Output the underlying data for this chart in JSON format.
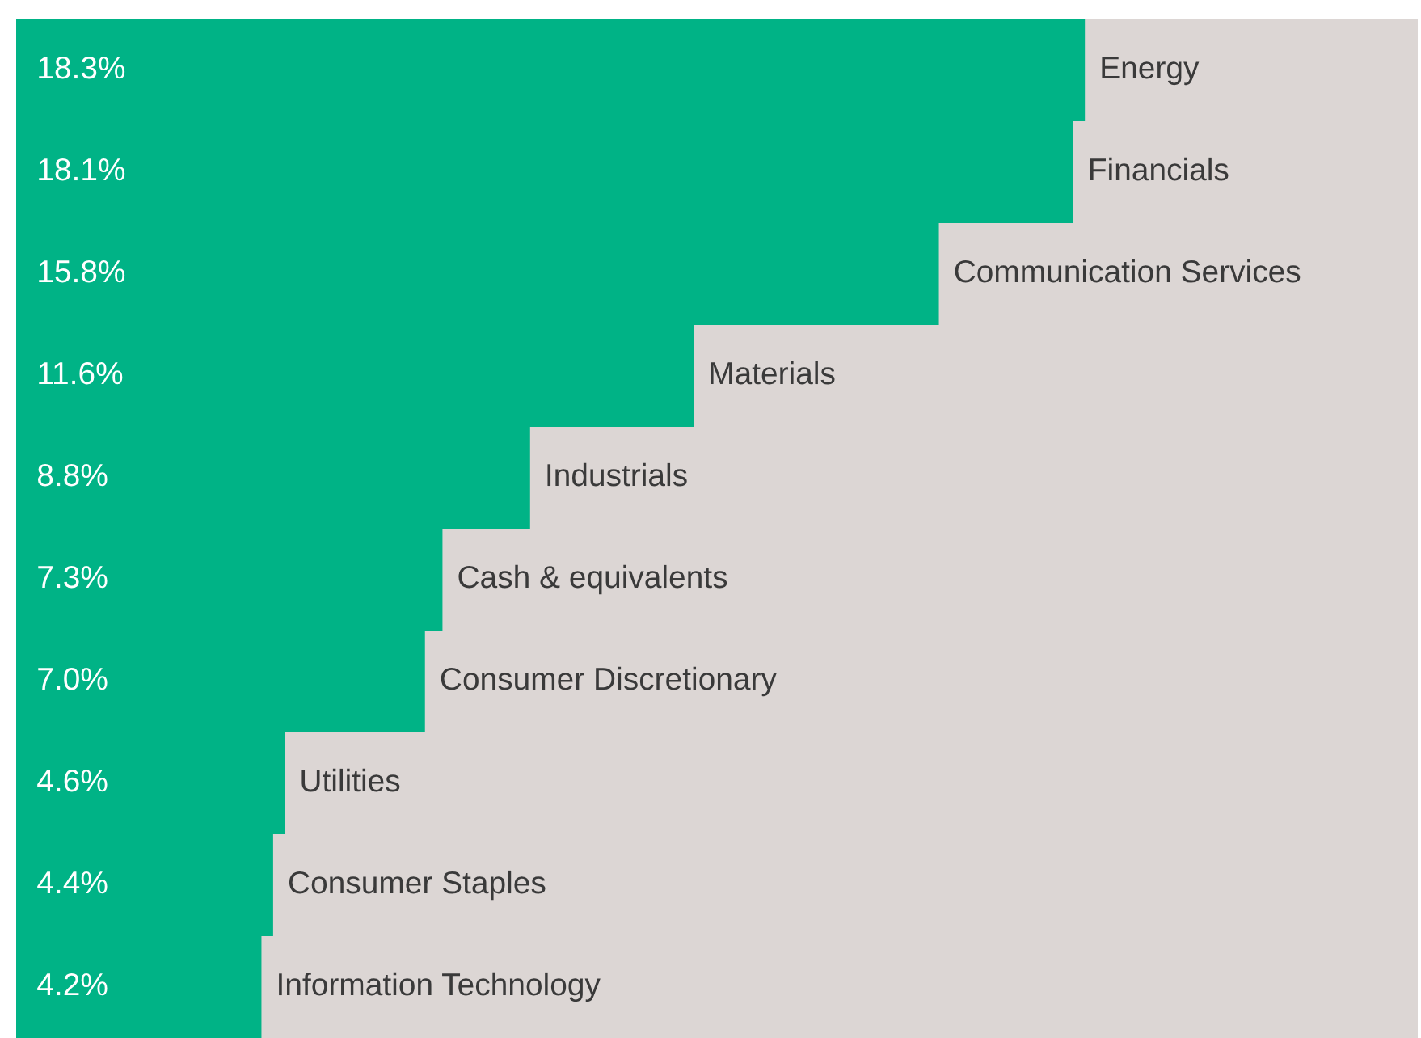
{
  "chart_data": {
    "type": "bar",
    "orientation": "horizontal",
    "categories": [
      "Energy",
      "Financials",
      "Communication Services",
      "Materials",
      "Industrials",
      "Cash & equivalents",
      "Consumer Discretionary",
      "Utilities",
      "Consumer Staples",
      "Information Technology"
    ],
    "values": [
      18.3,
      18.1,
      15.8,
      11.6,
      8.8,
      7.3,
      7.0,
      4.6,
      4.4,
      4.2
    ],
    "value_labels": [
      "18.3%",
      "18.1%",
      "15.8%",
      "11.6%",
      "8.8%",
      "7.3%",
      "7.0%",
      "4.6%",
      "4.4%",
      "4.2%"
    ],
    "color": "#00b386",
    "xlim": [
      0,
      24
    ],
    "tick_labels": false
  }
}
